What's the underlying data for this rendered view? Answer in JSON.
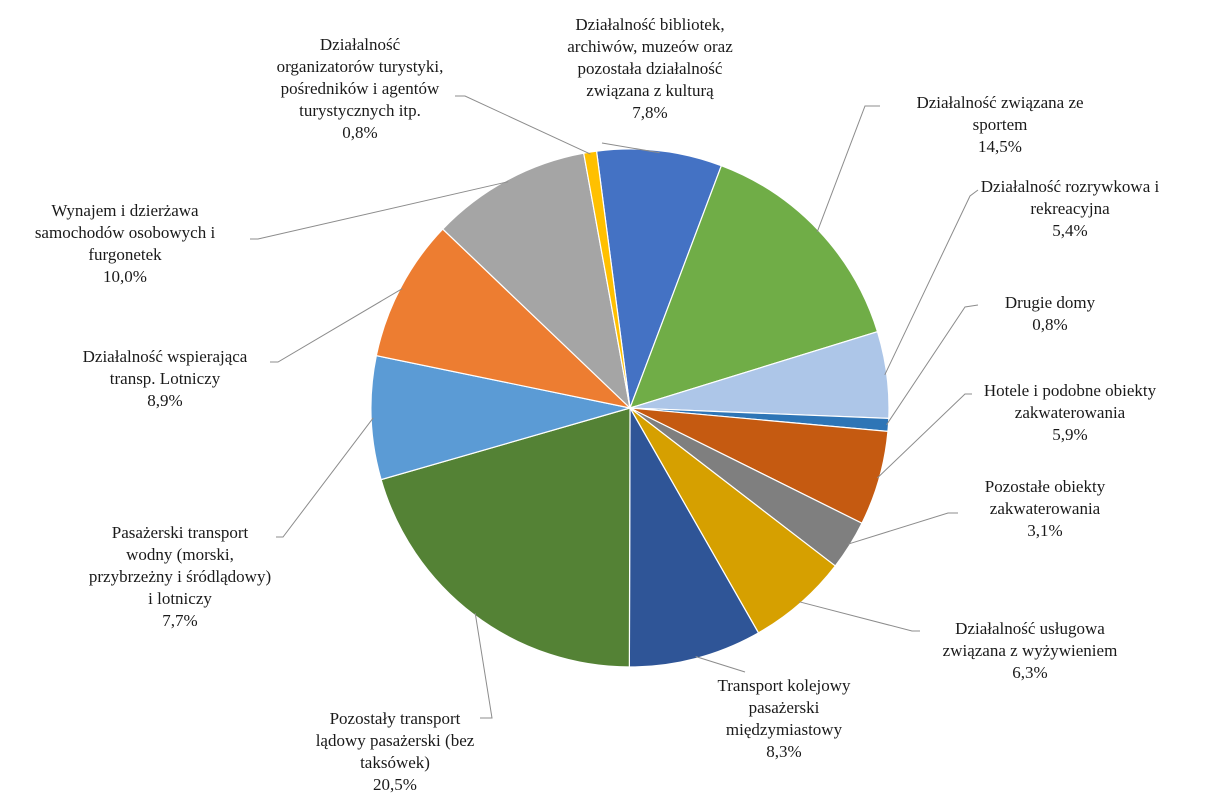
{
  "chart_data": {
    "type": "pie",
    "title": "",
    "legend": "none",
    "slices": [
      {
        "label": "Działalność bibliotek, archiwów, muzeów oraz pozostała działalność związana z kulturą",
        "value": 7.8,
        "display": "7,8%",
        "color": "#4472C4"
      },
      {
        "label": "Działalność związana ze sportem",
        "value": 14.5,
        "display": "14,5%",
        "color": "#70AD47"
      },
      {
        "label": "Działalność rozrywkowa i rekreacyjna",
        "value": 5.4,
        "display": "5,4%",
        "color": "#ADC6E8"
      },
      {
        "label": "Drugie domy",
        "value": 0.8,
        "display": "0,8%",
        "color": "#2E75B6"
      },
      {
        "label": "Hotele i podobne obiekty zakwaterowania",
        "value": 5.9,
        "display": "5,9%",
        "color": "#C55A11"
      },
      {
        "label": "Pozostałe obiekty zakwaterowania",
        "value": 3.1,
        "display": "3,1%",
        "color": "#7F7F7F"
      },
      {
        "label": "Działalność usługowa związana z wyżywieniem",
        "value": 6.3,
        "display": "6,3%",
        "color": "#D6A000"
      },
      {
        "label": "Transport kolejowy pasażerski międzymiastowy",
        "value": 8.3,
        "display": "8,3%",
        "color": "#2F5597"
      },
      {
        "label": "Pozostały transport lądowy pasażerski (bez taksówek)",
        "value": 20.5,
        "display": "20,5%",
        "color": "#548235"
      },
      {
        "label": "Pasażerski transport wodny (morski, przybrzeżny i śródlądowy) i lotniczy",
        "value": 7.7,
        "display": "7,7%",
        "color": "#5B9BD5"
      },
      {
        "label": "Działalność wspierająca transp. Lotniczy",
        "value": 8.9,
        "display": "8,9%",
        "color": "#ED7D31"
      },
      {
        "label": "Wynajem i dzierżawa samochodów osobowych i furgonetek",
        "value": 10.0,
        "display": "10,0%",
        "color": "#A5A5A5"
      },
      {
        "label": "Działalność organizatorów turystyki, pośredników i agentów turystycznych itp.",
        "value": 0.8,
        "display": "0,8%",
        "color": "#FFC000"
      }
    ]
  }
}
